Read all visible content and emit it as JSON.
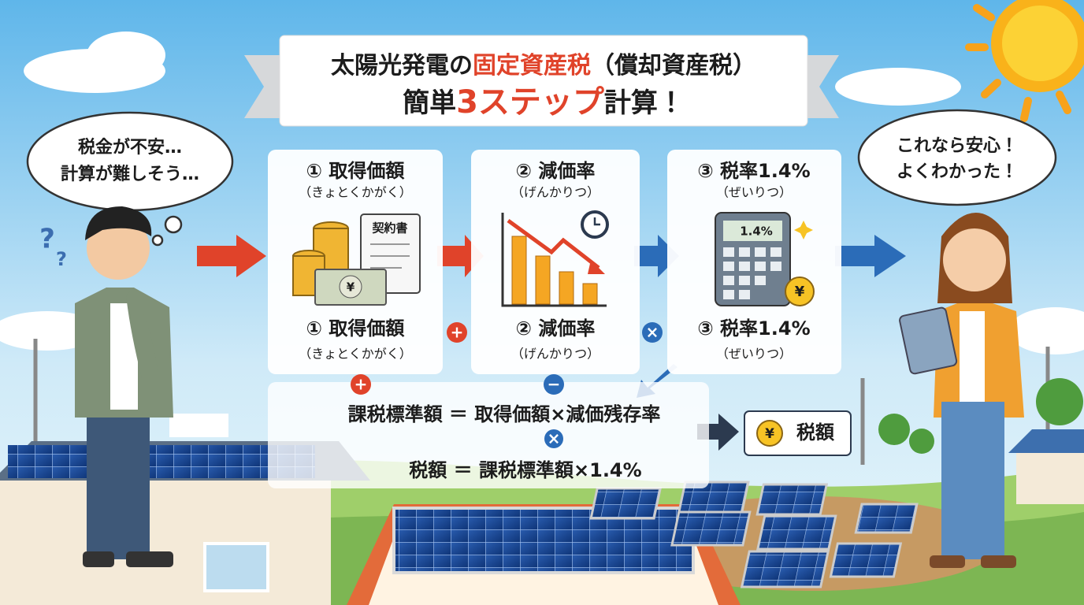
{
  "title": {
    "line1": [
      "太陽光発電の",
      "固定資産税",
      "（償却資産税）"
    ],
    "line2": [
      "簡単",
      "3ステップ",
      "計算！"
    ]
  },
  "left_bubble": {
    "lines": [
      "税金が不安…",
      "計算が難しそう…"
    ]
  },
  "question_marks": [
    "?",
    "?"
  ],
  "steps": [
    {
      "title": "① 取得価額",
      "reading": "（きょとくかがく）",
      "icon_texts": [
        "契約書",
        "¥"
      ],
      "bottom_title": "① 取得価額",
      "bottom_reading": "（きょとくかがく）"
    },
    {
      "title": "② 減価率",
      "reading": "（げんかりつ）",
      "bottom_title": "② 減価率",
      "bottom_reading": "（げんかりつ）"
    },
    {
      "title": "③ 税率1.4%",
      "reading": "（ぜいりつ）",
      "icon_texts": [
        "1.4%",
        "¥"
      ],
      "bottom_title": "③ 税率1.4%",
      "bottom_reading": "（ぜいりつ）"
    }
  ],
  "step_operators": [
    "+",
    "×"
  ],
  "formula_operators": [
    "+",
    "−"
  ],
  "formula": {
    "line1": "課税標準額 ＝ 取得価額×減価残存率",
    "operator": "×",
    "line2": "税額 ＝ 課税標準額×1.4%"
  },
  "result": {
    "symbol": "¥",
    "label": "税額"
  },
  "right_bubble": {
    "lines": [
      "これなら安心！",
      "よくわかった！"
    ]
  }
}
